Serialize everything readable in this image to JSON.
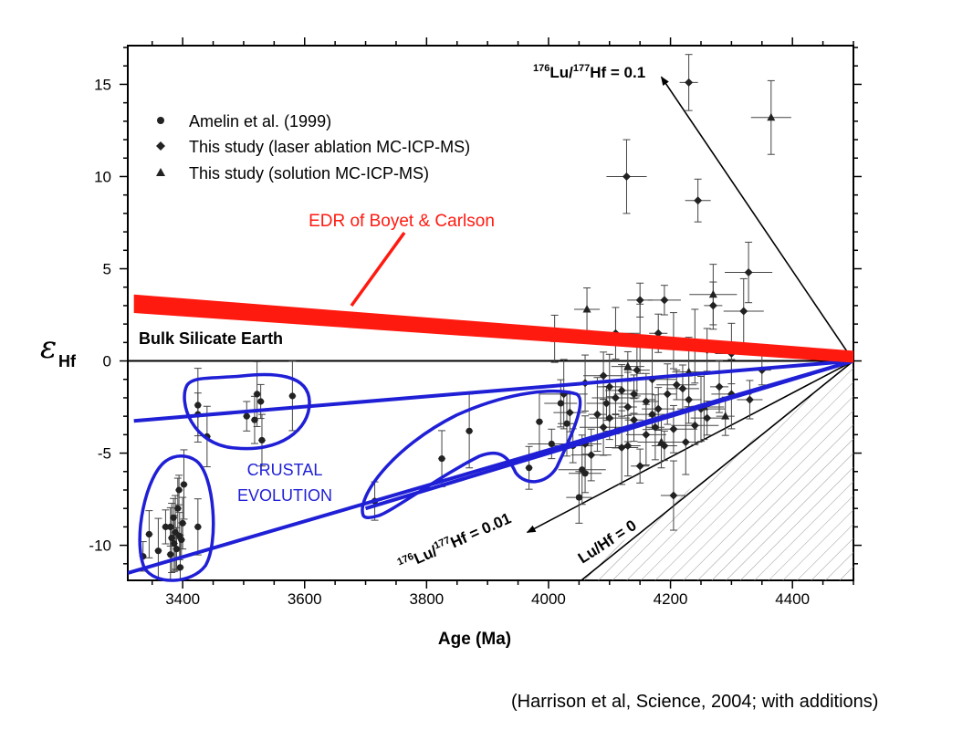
{
  "caption": "(Harrison et al, Science, 2004; with additions)",
  "colors": {
    "edr": "#ff1a10",
    "crustal": "#1f1fd6",
    "points": "#222222",
    "axes": "#000000",
    "hatch": "#9a9a9a"
  },
  "chart_data": {
    "type": "scatter",
    "xlabel": "Age (Ma)",
    "ylabel_symbol": "ε",
    "ylabel_sub": "Hf",
    "xlim": [
      3310,
      4500
    ],
    "ylim": [
      -11.9,
      17.1
    ],
    "xticks": [
      3400,
      3600,
      3800,
      4000,
      4200,
      4400
    ],
    "yticks": [
      15,
      10,
      5,
      0,
      -5,
      -10
    ],
    "ytick_labels": [
      "15",
      "10",
      "5",
      "0",
      "-5",
      "-10"
    ],
    "legend": [
      {
        "marker": "circle",
        "label": "Amelin et al. (1999)"
      },
      {
        "marker": "diamond",
        "label": "This study (laser ablation MC-ICP-MS)"
      },
      {
        "marker": "triangle",
        "label": "This study (solution MC-ICP-MS)"
      }
    ],
    "reference_line_label": "Bulk Silicate Earth",
    "edr_label": "EDR of Boyet & Carlson",
    "crustal_label_lines": [
      "CRUSTAL",
      "EVOLUTION"
    ],
    "trend_labels": {
      "lu01": {
        "sup1": "176",
        "a": "Lu/",
        "sup2": "177",
        "b": "Hf = 0.1"
      },
      "lu001": {
        "sup1": "176",
        "a": "Lu/",
        "sup2": "177",
        "b": "Hf = 0.01"
      },
      "lu0": "Lu/Hf = 0"
    },
    "series": [
      {
        "marker": "circle",
        "points": [
          [
            3335,
            -10.6
          ],
          [
            3345,
            -9.4
          ],
          [
            3360,
            -10.3
          ],
          [
            3372,
            -9.0
          ],
          [
            3380,
            -10.5
          ],
          [
            3382,
            -9.6
          ],
          [
            3385,
            -8.5
          ],
          [
            3386,
            -9.9
          ],
          [
            3388,
            -9.3
          ],
          [
            3390,
            -10.2
          ],
          [
            3392,
            -8.0
          ],
          [
            3394,
            -7.0
          ],
          [
            3395,
            -9.5
          ],
          [
            3396,
            -11.2
          ],
          [
            3398,
            -9.7
          ],
          [
            3400,
            -8.8
          ],
          [
            3402,
            -6.7
          ],
          [
            3380,
            -9.0
          ],
          [
            3425,
            -9.0
          ],
          [
            3425,
            -2.4
          ],
          [
            3425,
            -2.9
          ],
          [
            3440,
            -4.1
          ],
          [
            3505,
            -3.0
          ],
          [
            3518,
            -3.2
          ],
          [
            3522,
            -1.8
          ],
          [
            3528,
            -2.2
          ],
          [
            3530,
            -4.3
          ],
          [
            3580,
            -1.9
          ],
          [
            3715,
            -7.6
          ],
          [
            3825,
            -5.3
          ],
          [
            3870,
            -3.8
          ],
          [
            3968,
            -5.8
          ],
          [
            3985,
            -3.3
          ],
          [
            4005,
            -4.5
          ],
          [
            4020,
            -2.3
          ],
          [
            4030,
            -3.4
          ],
          [
            4040,
            -4.6
          ],
          [
            4050,
            -7.4
          ],
          [
            4055,
            -5.9
          ],
          [
            4060,
            -6.1
          ]
        ]
      },
      {
        "marker": "diamond",
        "points": [
          [
            4230,
            15.1
          ],
          [
            4128,
            10.0
          ],
          [
            4245,
            8.7
          ],
          [
            4328,
            4.8
          ],
          [
            4190,
            3.3
          ],
          [
            4270,
            3.0
          ],
          [
            4320,
            2.7
          ],
          [
            4150,
            3.3
          ],
          [
            4110,
            1.5
          ],
          [
            4150,
            1.2
          ],
          [
            4180,
            1.5
          ],
          [
            4205,
            1.1
          ],
          [
            4240,
            0.8
          ],
          [
            4260,
            0.6
          ],
          [
            4300,
            0.4
          ],
          [
            4350,
            -0.5
          ],
          [
            4090,
            -0.8
          ],
          [
            4100,
            -1.4
          ],
          [
            4110,
            -2.0
          ],
          [
            4120,
            -1.6
          ],
          [
            4130,
            -2.5
          ],
          [
            4140,
            -1.8
          ],
          [
            4160,
            -2.2
          ],
          [
            4170,
            -1.0
          ],
          [
            4180,
            -2.6
          ],
          [
            4195,
            -1.8
          ],
          [
            4210,
            -1.3
          ],
          [
            4230,
            -2.1
          ],
          [
            4250,
            -2.6
          ],
          [
            4260,
            -3.1
          ],
          [
            4280,
            -1.4
          ],
          [
            4300,
            -1.8
          ],
          [
            4330,
            -2.1
          ],
          [
            4090,
            -3.6
          ],
          [
            4120,
            -4.7
          ],
          [
            4140,
            -3.2
          ],
          [
            4160,
            -4.0
          ],
          [
            4190,
            -4.6
          ],
          [
            4205,
            -3.7
          ],
          [
            4225,
            -4.4
          ],
          [
            4150,
            -5.7
          ],
          [
            4070,
            -5.1
          ],
          [
            4205,
            -7.3
          ],
          [
            4240,
            -3.5
          ],
          [
            4060,
            -4.5
          ],
          [
            4080,
            -2.9
          ],
          [
            4100,
            -3.1
          ],
          [
            4130,
            -4.6
          ],
          [
            4170,
            -2.9
          ],
          [
            4220,
            -1.5
          ],
          [
            4175,
            -3.6
          ],
          [
            4095,
            -2.3
          ],
          [
            4145,
            -0.5
          ],
          [
            4025,
            -1.8
          ],
          [
            4035,
            -2.8
          ],
          [
            4060,
            -1.2
          ]
        ]
      },
      {
        "marker": "triangle",
        "points": [
          [
            4365,
            13.2
          ],
          [
            4063,
            2.8
          ],
          [
            4270,
            3.6
          ],
          [
            4130,
            -0.3
          ],
          [
            4010,
            1.2
          ],
          [
            4255,
            -2.5
          ],
          [
            4110,
            -3.8
          ],
          [
            4185,
            -4.4
          ],
          [
            4230,
            -0.6
          ],
          [
            4290,
            -3.0
          ]
        ]
      }
    ]
  }
}
